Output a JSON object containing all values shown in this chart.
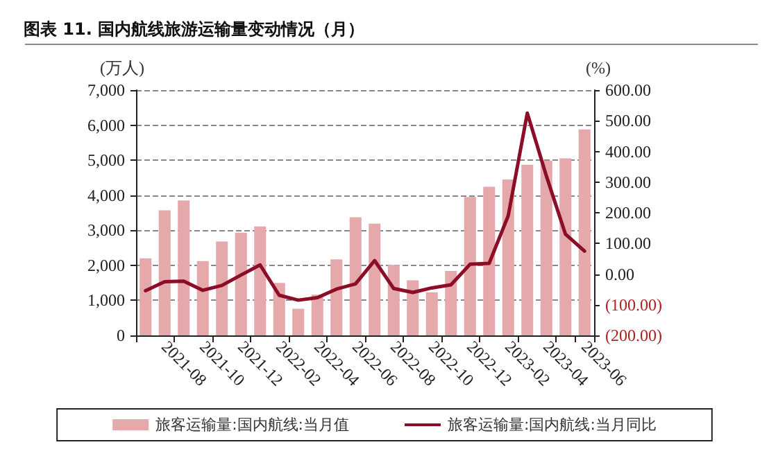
{
  "chart_data": {
    "type": "bar",
    "title": "图表 11. 国内航线旅游运输量变动情况（月）",
    "ylabel": "(万人)",
    "y2label": "(%)",
    "categories": [
      null,
      "2021-08",
      null,
      "2021-10",
      null,
      "2021-12",
      null,
      "2022-02",
      null,
      "2022-04",
      null,
      "2022-06",
      null,
      "2022-08",
      null,
      "2022-10",
      null,
      "2022-12",
      null,
      "2023-02",
      null,
      "2023-04",
      null,
      "2023-06"
    ],
    "series": [
      {
        "name": "旅客运输量:国内航线:当月值",
        "color": "#e6a9ab",
        "values": [
          2200,
          3570,
          3850,
          2120,
          2680,
          2930,
          3110,
          1500,
          760,
          1160,
          2170,
          3370,
          3190,
          2010,
          1570,
          1230,
          1840,
          3950,
          4240,
          4450,
          4870,
          4990,
          5050,
          5880
        ]
      },
      {
        "name": "旅客运输量:国内航线:当月同比",
        "type": "line",
        "axis": "y2",
        "color": "#8b0d26",
        "values": [
          -54,
          -25,
          -23,
          -53,
          -37,
          -3,
          30,
          -69,
          -85,
          -77,
          -49,
          -32,
          44,
          -47,
          -60,
          -45,
          -35,
          32,
          35,
          190,
          525,
          320,
          130,
          75
        ]
      }
    ],
    "ylim": [
      0,
      7000
    ],
    "yticks": [
      0,
      {
        "value": 1000,
        "label": "1,000"
      },
      {
        "value": 2000,
        "label": "2,000"
      },
      {
        "value": 3000,
        "label": "3,000"
      },
      {
        "value": 4000,
        "label": "4,000"
      },
      {
        "value": 5000,
        "label": "5,000"
      },
      {
        "value": 6000,
        "label": "6,000"
      },
      {
        "value": 7000,
        "label": "7,000"
      }
    ],
    "y2lim": [
      -200,
      600
    ],
    "y2ticks": [
      {
        "value": -200,
        "label": "(200.00)"
      },
      {
        "value": -100,
        "label": "(100.00)"
      },
      {
        "value": 0,
        "label": "0.00"
      },
      {
        "value": 100,
        "label": "100.00"
      },
      {
        "value": 200,
        "label": "200.00"
      },
      {
        "value": 300,
        "label": "300.00"
      },
      {
        "value": 400,
        "label": "400.00"
      },
      {
        "value": 500,
        "label": "500.00"
      },
      {
        "value": 600,
        "label": "600.00"
      }
    ],
    "grid": "y",
    "legend": "bottom",
    "marker": "none",
    "line_style": "solid"
  }
}
